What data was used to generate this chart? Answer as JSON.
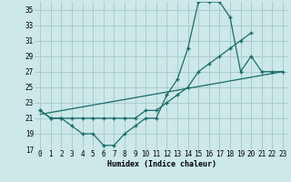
{
  "xlabel": "Humidex (Indice chaleur)",
  "background_color": "#cce8e8",
  "grid_color": "#aacccc",
  "line_color": "#1a6b6b",
  "xlim": [
    -0.5,
    23.5
  ],
  "ylim": [
    17,
    36
  ],
  "yticks": [
    17,
    19,
    21,
    23,
    25,
    27,
    29,
    31,
    33,
    35
  ],
  "xticks": [
    0,
    1,
    2,
    3,
    4,
    5,
    6,
    7,
    8,
    9,
    10,
    11,
    12,
    13,
    14,
    15,
    16,
    17,
    18,
    19,
    20,
    21,
    22,
    23
  ],
  "line1_x": [
    0,
    1,
    2,
    3,
    4,
    5,
    6,
    7,
    8,
    9,
    10,
    11,
    12,
    13,
    14,
    15,
    16,
    17,
    18,
    19,
    20,
    21,
    22,
    23
  ],
  "line1_y": [
    22,
    21,
    21,
    20,
    19,
    19,
    17.5,
    17.5,
    19,
    20,
    21,
    21,
    24,
    26,
    30,
    36,
    36,
    36,
    34,
    27,
    29,
    27,
    27,
    27
  ],
  "line2_x": [
    0,
    1,
    2,
    3,
    4,
    5,
    6,
    7,
    8,
    9,
    10,
    11,
    12,
    13,
    14,
    15,
    16,
    17,
    18,
    19,
    20
  ],
  "line2_y": [
    22,
    21,
    21,
    21,
    21,
    21,
    21,
    21,
    21,
    21,
    22,
    22,
    23,
    24,
    25,
    27,
    28,
    29,
    30,
    31,
    32
  ],
  "line3_x": [
    0,
    23
  ],
  "line3_y": [
    21.5,
    27
  ],
  "xlabel_fontsize": 6,
  "tick_fontsize": 5.5
}
